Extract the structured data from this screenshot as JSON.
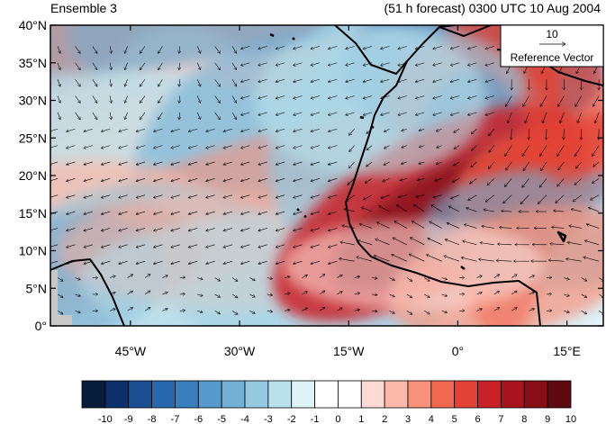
{
  "title_left": "Ensemble 3",
  "title_right": "(51 h forecast) 0300 UTC 10 Aug 2004",
  "map": {
    "lon_range": [
      -56,
      20
    ],
    "lat_range": [
      0,
      40
    ],
    "lat_ticks": [
      "0°",
      "5°N",
      "10°N",
      "15°N",
      "20°N",
      "25°N",
      "30°N",
      "35°N",
      "40°N"
    ],
    "lon_ticks": [
      "45°W",
      "30°W",
      "15°W",
      "0°",
      "15°E"
    ],
    "reference_vector": {
      "value": "10",
      "label": "Reference Vector"
    }
  },
  "colorbar": {
    "labels": [
      "-10",
      "-9",
      "-8",
      "-7",
      "-6",
      "-5",
      "-4",
      "-3",
      "-2",
      "-1",
      "0",
      "1",
      "2",
      "3",
      "4",
      "5",
      "6",
      "7",
      "8",
      "9",
      "10"
    ],
    "colors": [
      "#081d3b",
      "#0d2f6b",
      "#1a4f94",
      "#2869ad",
      "#3a7fbd",
      "#569bcc",
      "#72b0d6",
      "#95c9e0",
      "#b9e1eb",
      "#def3f7",
      "#ffffff",
      "#ffffff",
      "#fddad4",
      "#fbb8a8",
      "#f7917a",
      "#f0694f",
      "#e24233",
      "#c92127",
      "#a8131e",
      "#870d16",
      "#5e0a10"
    ]
  }
}
